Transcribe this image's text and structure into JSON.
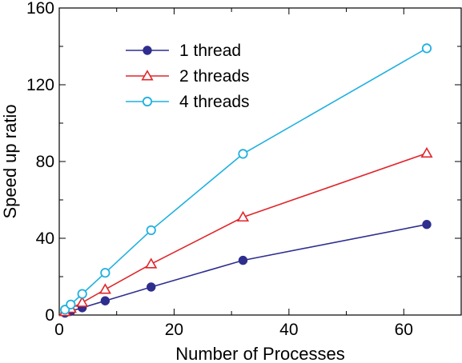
{
  "chart_data": {
    "type": "line",
    "xlabel": "Number of Processes",
    "ylabel": "Speed up ratio",
    "xlim": [
      0,
      70
    ],
    "ylim": [
      0,
      160
    ],
    "xticks": [
      0,
      20,
      40,
      60
    ],
    "yticks": [
      0,
      40,
      80,
      120,
      160
    ],
    "tick_labels_x": [
      "0",
      "20",
      "40",
      "60"
    ],
    "tick_labels_y": [
      "0",
      "40",
      "80",
      "120",
      "160"
    ],
    "grid": false,
    "legend_position": "top-left",
    "series": [
      {
        "name": "1 thread",
        "color": "#2e2e8f",
        "marker": "filled-circle",
        "x": [
          1,
          2,
          4,
          8,
          16,
          32,
          64
        ],
        "y": [
          1,
          2,
          3.8,
          7.4,
          14.6,
          28.5,
          47.2
        ]
      },
      {
        "name": "2 threads",
        "color": "#e0262b",
        "marker": "open-triangle",
        "x": [
          1,
          2,
          4,
          8,
          16,
          32,
          64
        ],
        "y": [
          1.7,
          3.4,
          6.5,
          13.3,
          26.6,
          51,
          84.3
        ]
      },
      {
        "name": "4 threads",
        "color": "#1fb0e0",
        "marker": "open-circle",
        "x": [
          1,
          2,
          4,
          8,
          16,
          32,
          64
        ],
        "y": [
          2.8,
          5.5,
          11,
          22,
          44.2,
          84,
          139
        ]
      }
    ]
  }
}
